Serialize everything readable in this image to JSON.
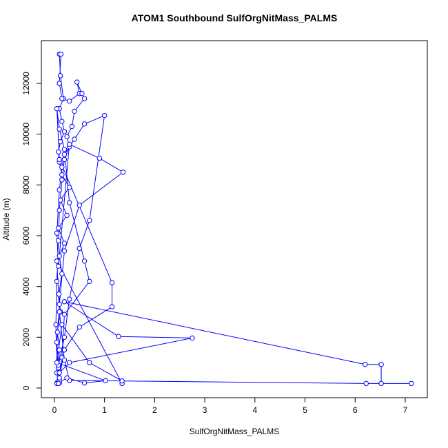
{
  "chart_data": {
    "type": "line",
    "title": "ATOM1 Southbound SulfOrgNitMass_PALMS",
    "x_label": "SulfOrgNitMass_PALMS",
    "y_label": "Altitude (m)",
    "xlim": [
      -0.26,
      7.44
    ],
    "ylim": [
      -380,
      13680
    ],
    "xticks": [
      0,
      1,
      2,
      3,
      4,
      5,
      6,
      7
    ],
    "yticks": [
      0,
      2000,
      4000,
      6000,
      8000,
      10000,
      12000
    ],
    "x": [
      0.05,
      0.08,
      0.1,
      0.06,
      0.12,
      0.09,
      0.15,
      0.1,
      0.2,
      0.08,
      0.25,
      0.12,
      0.3,
      0.15,
      0.1,
      0.08,
      0.12,
      0.2,
      0.15,
      0.1,
      0.18,
      0.12,
      0.1,
      0.13,
      0.1,
      0.15,
      0.3,
      0.5,
      0.45,
      0.55,
      0.6,
      0.4,
      0.35,
      0.25,
      0.3,
      0.2,
      0.15,
      0.1,
      0.08,
      0.05,
      0.03,
      0.05,
      0.1,
      0.08,
      0.2,
      0.3,
      0.5,
      0.7,
      1.0,
      0.6,
      0.4,
      0.2,
      0.15,
      0.1,
      0.05,
      0.08,
      0.3,
      0.9,
      1.37,
      0.5,
      0.2,
      0.1,
      0.05,
      0.1,
      0.15,
      0.2,
      0.7,
      0.6,
      0.3,
      0.2,
      0.1,
      0.05,
      0.1,
      1.15,
      1.15,
      0.5,
      0.2,
      0.1,
      0.05,
      0.1,
      0.3,
      2.75,
      1.28,
      0.2,
      6.2,
      6.52,
      6.52,
      7.12,
      6.22,
      0.3,
      0.2,
      0.1,
      0.05,
      1.35,
      1.35,
      0.7,
      0.15,
      0.05,
      1.02,
      0.6,
      0.25,
      0.08
    ],
    "series": [
      {
        "name": "SulfOrgNitMass_PALMS",
        "color": "#0000ff",
        "values": [
          200,
          800,
          1500,
          2200,
          3000,
          3700,
          4500,
          5200,
          5700,
          6300,
          6800,
          7400,
          7900,
          8400,
          8900,
          9300,
          9700,
          10100,
          10500,
          11000,
          11400,
          12300,
          13150,
          13150,
          12000,
          11400,
          11300,
          11600,
          12050,
          11600,
          11400,
          10900,
          10300,
          9900,
          9500,
          9000,
          8200,
          7000,
          5800,
          4200,
          2500,
          600,
          200,
          900,
          2000,
          3500,
          5500,
          6600,
          10730,
          10400,
          9800,
          9200,
          8700,
          7800,
          6100,
          4800,
          9600,
          9050,
          8500,
          7200,
          5400,
          3300,
          1800,
          300,
          1200,
          2900,
          4200,
          5000,
          7300,
          9400,
          10200,
          11000,
          9000,
          4150,
          3200,
          2400,
          1500,
          400,
          180,
          600,
          1000,
          1970,
          2030,
          3400,
          930,
          930,
          180,
          180,
          180,
          300,
          1100,
          3000,
          5000,
          180,
          280,
          1000,
          2500,
          1000,
          290,
          200,
          400,
          180
        ]
      }
    ]
  }
}
